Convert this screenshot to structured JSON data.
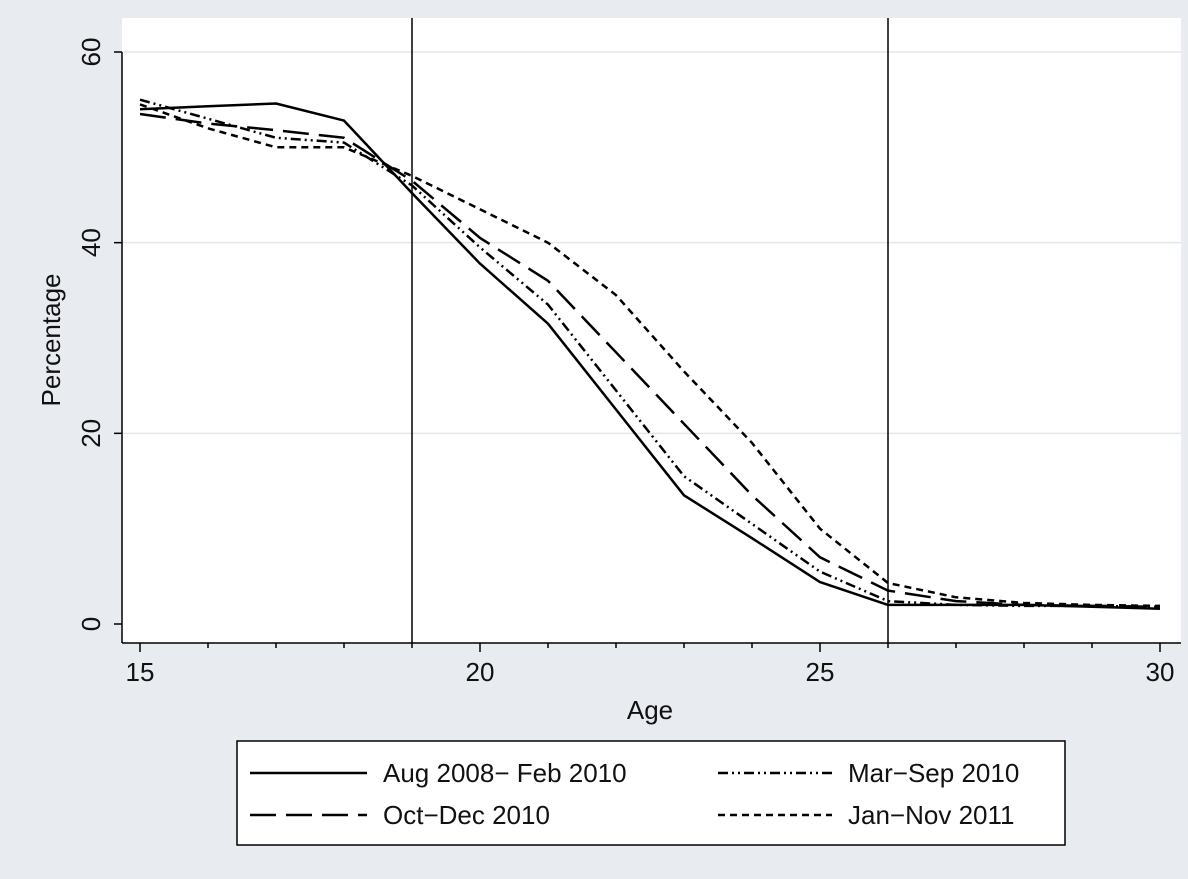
{
  "chart_data": {
    "type": "line",
    "title": "",
    "xlabel": "Age",
    "ylabel": "Percentage",
    "xlim": [
      15,
      30
    ],
    "ylim": [
      0,
      60
    ],
    "x_ticks": [
      15,
      20,
      25,
      30
    ],
    "y_ticks": [
      0,
      20,
      40,
      60
    ],
    "grid": "horizontal",
    "vertical_reference_lines": [
      19,
      26
    ],
    "legend_position": "bottom",
    "legend_columns": 2,
    "series": [
      {
        "name": "Aug 2008− Feb 2010",
        "style": "solid",
        "color": "#000000",
        "x": [
          15,
          16,
          17,
          18,
          19,
          20,
          21,
          22,
          23,
          24,
          25,
          26,
          27,
          28,
          29,
          30
        ],
        "y": [
          54.0,
          54.3,
          54.6,
          52.8,
          45.2,
          37.8,
          31.5,
          22.5,
          13.5,
          9.0,
          4.4,
          2.0,
          2.0,
          2.0,
          1.8,
          1.6
        ]
      },
      {
        "name": "Mar−Sep 2010",
        "style": "dash-dot-dot",
        "color": "#000000",
        "x": [
          15,
          16,
          17,
          18,
          19,
          20,
          21,
          22,
          23,
          24,
          25,
          26,
          27,
          28,
          29,
          30
        ],
        "y": [
          55.0,
          53.0,
          51.0,
          50.5,
          46.0,
          39.5,
          33.5,
          24.5,
          15.5,
          10.5,
          5.5,
          2.4,
          2.0,
          1.9,
          1.9,
          1.8
        ]
      },
      {
        "name": "Oct−Dec 2010",
        "style": "long-dash",
        "color": "#000000",
        "x": [
          15,
          16,
          17,
          18,
          19,
          20,
          21,
          22,
          23,
          24,
          25,
          26,
          27,
          28,
          29,
          30
        ],
        "y": [
          53.5,
          52.5,
          51.8,
          51.0,
          46.5,
          40.5,
          36.0,
          28.5,
          21.0,
          13.5,
          7.0,
          3.5,
          2.4,
          2.0,
          1.9,
          1.8
        ]
      },
      {
        "name": "Jan−Nov 2011",
        "style": "short-dash",
        "color": "#000000",
        "x": [
          15,
          16,
          17,
          18,
          19,
          20,
          21,
          22,
          23,
          24,
          25,
          26,
          27,
          28,
          29,
          30
        ],
        "y": [
          54.5,
          52.0,
          50.0,
          50.0,
          47.0,
          43.5,
          40.0,
          34.5,
          26.5,
          19.0,
          10.0,
          4.3,
          2.8,
          2.2,
          2.0,
          1.9
        ]
      }
    ]
  }
}
